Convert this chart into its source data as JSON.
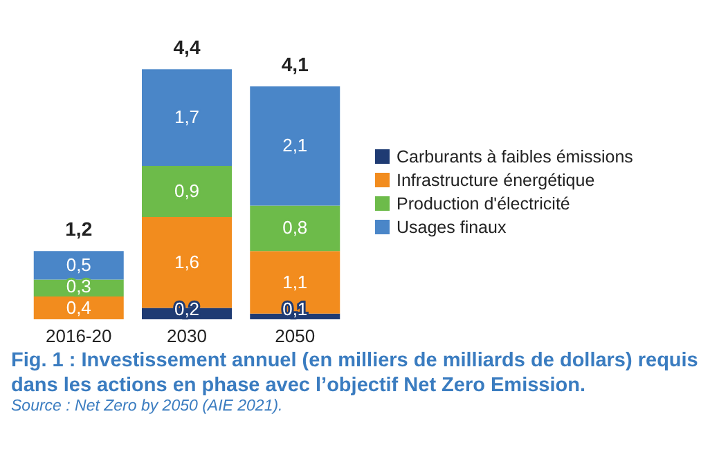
{
  "chart_data": {
    "type": "bar",
    "stacked": true,
    "categories": [
      "2016-20",
      "2030",
      "2050"
    ],
    "series": [
      {
        "name": "Carburants à faibles émissions",
        "color": "#1f3b73",
        "values": [
          null,
          0.2,
          0.1
        ],
        "value_labels": [
          null,
          "0,2",
          "0,1"
        ]
      },
      {
        "name": "Infrastructure énergétique",
        "color": "#f28c1e",
        "values": [
          0.4,
          1.6,
          1.1
        ],
        "value_labels": [
          "0,4",
          "1,6",
          "1,1"
        ]
      },
      {
        "name": "Production d'électricité",
        "color": "#6dbb4a",
        "values": [
          0.3,
          0.9,
          0.8
        ],
        "value_labels": [
          "0,3",
          "0,9",
          "0,8"
        ]
      },
      {
        "name": "Usages finaux",
        "color": "#4a86c8",
        "values": [
          0.5,
          1.7,
          2.1
        ],
        "value_labels": [
          "0,5",
          "1,7",
          "2,1"
        ]
      }
    ],
    "totals": [
      "1,2",
      "4,4",
      "4,1"
    ],
    "legend": "right",
    "title": "Fig. 1 : Investissement annuel (en milliers de milliards de dollars) requis dans les actions en phase avec l’objectif Net Zero Emission.",
    "annotations": [
      "Source : Net Zero by 2050 (AIE 2021)."
    ]
  }
}
